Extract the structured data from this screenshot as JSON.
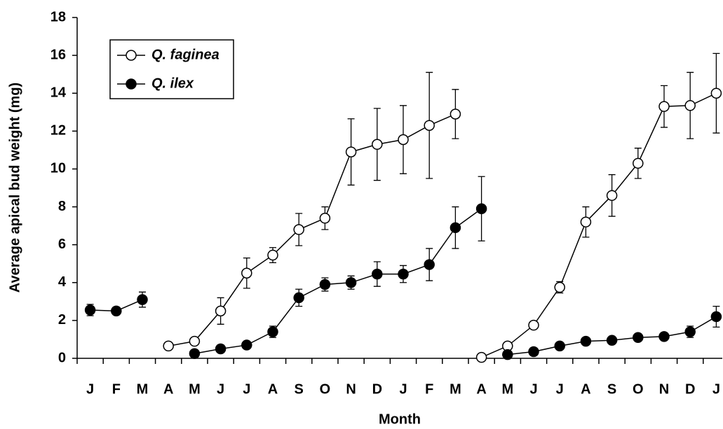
{
  "chart_data": {
    "type": "line",
    "y_label": "Average apical bud weight (mg)",
    "x_label": "Month",
    "categories": [
      "J",
      "F",
      "M",
      "A",
      "M",
      "J",
      "J",
      "A",
      "S",
      "O",
      "N",
      "D",
      "J",
      "F",
      "M",
      "A",
      "M",
      "J",
      "J",
      "A",
      "S",
      "O",
      "N",
      "D",
      "J"
    ],
    "ylim": [
      0,
      18
    ],
    "yticks": [
      0,
      2,
      4,
      6,
      8,
      10,
      12,
      14,
      16,
      18
    ],
    "series": [
      {
        "name": "Q. faginea",
        "color": "#000000",
        "marker": "open",
        "breaks_before": [
          15
        ],
        "values": [
          null,
          null,
          null,
          0.65,
          0.9,
          2.5,
          4.5,
          5.45,
          6.8,
          7.4,
          10.9,
          11.3,
          11.55,
          12.3,
          12.9,
          0.05,
          0.65,
          1.75,
          3.75,
          7.2,
          8.6,
          10.3,
          13.3,
          13.35,
          14.0
        ],
        "errors": [
          null,
          null,
          null,
          0,
          0.1,
          0.7,
          0.8,
          0.4,
          0.85,
          0.6,
          1.75,
          1.9,
          1.8,
          2.8,
          1.3,
          0,
          0.1,
          0.1,
          0.3,
          0.8,
          1.1,
          0.8,
          1.1,
          1.75,
          2.1
        ]
      },
      {
        "name": "Q. ilex",
        "color": "#000000",
        "marker": "filled",
        "breaks_before": [
          16
        ],
        "values": [
          2.55,
          2.5,
          3.1,
          null,
          0.25,
          0.5,
          0.7,
          1.4,
          3.2,
          3.9,
          4.0,
          4.45,
          4.45,
          4.95,
          6.9,
          7.9,
          0.2,
          0.35,
          0.65,
          0.9,
          0.95,
          1.1,
          1.15,
          1.4,
          2.2
        ],
        "errors": [
          0.3,
          0.2,
          0.4,
          null,
          0.1,
          0.2,
          0.1,
          0.3,
          0.45,
          0.35,
          0.35,
          0.65,
          0.45,
          0.85,
          1.1,
          1.7,
          0.1,
          0.1,
          0.1,
          0.15,
          0.15,
          0.15,
          0.15,
          0.3,
          0.55
        ]
      }
    ]
  }
}
